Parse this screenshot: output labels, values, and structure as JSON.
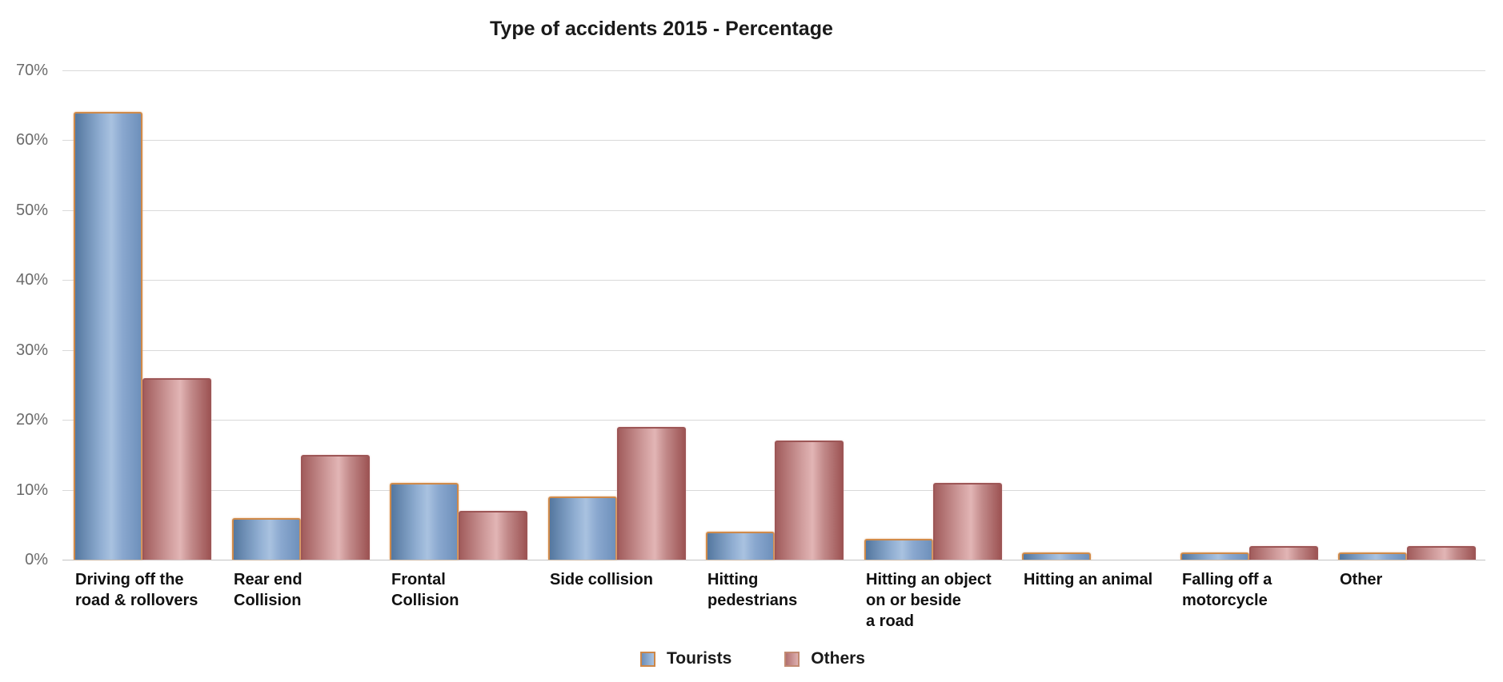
{
  "title": "Type of accidents 2015 - Percentage",
  "chart_data": {
    "type": "bar",
    "title": "Type of accidents 2015 - Percentage",
    "categories": [
      "Driving off the\nroad & rollovers",
      "Rear end\nCollision",
      "Frontal\nCollision",
      "Side collision",
      "Hitting\npedestrians",
      "Hitting an object\non or beside\na road",
      "Hitting an animal",
      "Falling off a\nmotorcycle",
      "Other"
    ],
    "series": [
      {
        "name": "Tourists",
        "values": [
          64,
          6,
          11,
          9,
          4,
          3,
          1,
          1,
          1
        ],
        "color": "#7da0cb",
        "border_color": "#cf8a4a"
      },
      {
        "name": "Others",
        "values": [
          26,
          15,
          7,
          19,
          17,
          11,
          0,
          2,
          2
        ],
        "color": "#c58f8f",
        "border_color": "#9d5656"
      }
    ],
    "xlabel": "",
    "ylabel": "",
    "ylim": [
      0,
      70
    ],
    "ytick_step": 10,
    "ytick_suffix": "%",
    "ytick_labels": [
      "0%",
      "10%",
      "20%",
      "30%",
      "40%",
      "50%",
      "60%",
      "70%"
    ],
    "grid": true,
    "gridline_color": "#d9d9d9",
    "legend_position": "bottom"
  }
}
